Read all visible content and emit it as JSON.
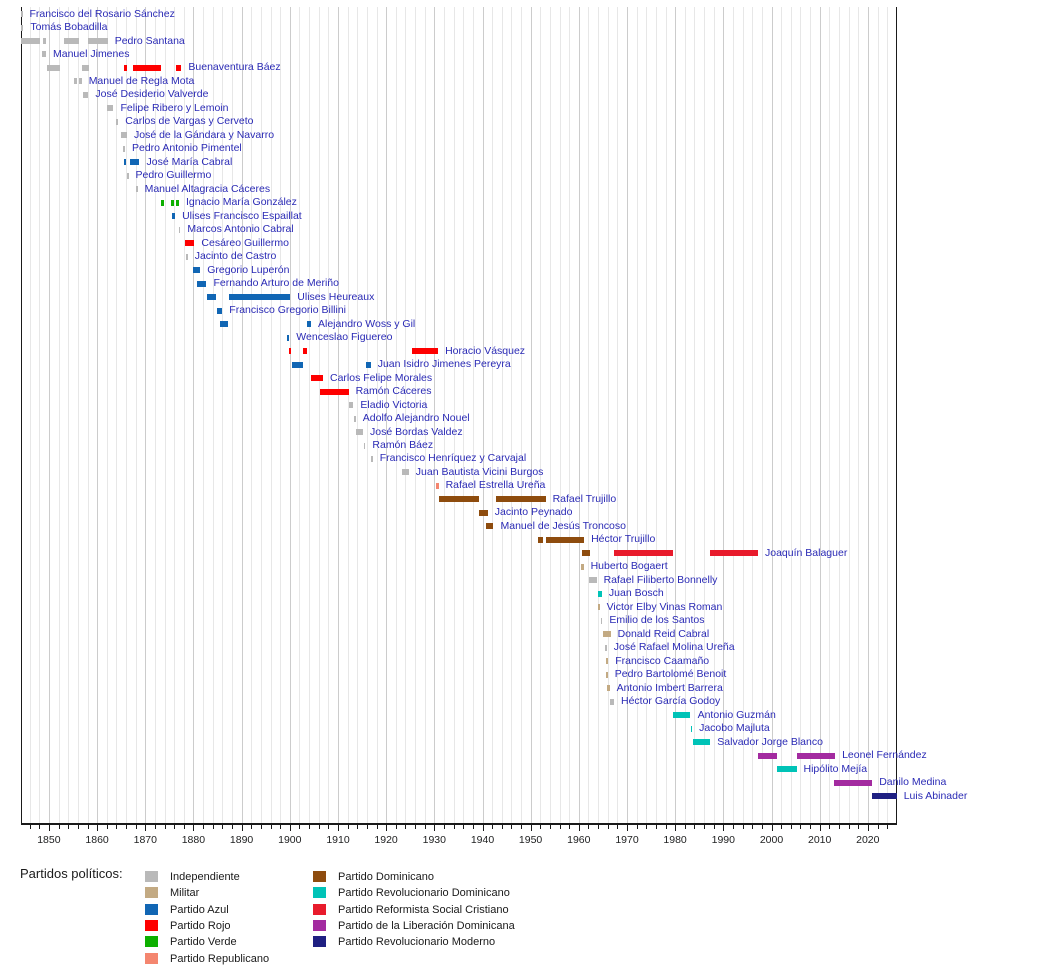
{
  "legend_title": "Partidos políticos:",
  "chart_data": {
    "type": "timeline",
    "title": "",
    "x_axis": {
      "year_min": 1844.2,
      "year_max": 2025.85,
      "tick_labels": [
        1850,
        1860,
        1870,
        1880,
        1890,
        1900,
        1910,
        1920,
        1930,
        1940,
        1950,
        1960,
        1970,
        1980,
        1990,
        2000,
        2010,
        2020
      ],
      "minor_step_years": 2,
      "grid": true
    },
    "parties": {
      "ind": {
        "label": "Independiente",
        "color": "#b9b9b9"
      },
      "mil": {
        "label": "Militar",
        "color": "#c3aa83"
      },
      "azul": {
        "label": "Partido Azul",
        "color": "#1166b4"
      },
      "rojo": {
        "label": "Partido Rojo",
        "color": "#fe0000"
      },
      "verde": {
        "label": "Partido Verde",
        "color": "#0daf00"
      },
      "rep": {
        "label": "Partido Republicano",
        "color": "#f4866f"
      },
      "dom": {
        "label": "Partido Dominicano",
        "color": "#8e4c0e"
      },
      "prd": {
        "label": "Partido Revolucionario Dominicano",
        "color": "#00c3b7"
      },
      "prsc": {
        "label": "Partido Reformista Social Cristiano",
        "color": "#e81b2c"
      },
      "pld": {
        "label": "Partido de la Liberación Dominicana",
        "color": "#a32ba0"
      },
      "prm": {
        "label": "Partido Revolucionario Moderno",
        "color": "#1f2082"
      }
    },
    "legend_left_order": [
      "ind",
      "mil",
      "azul",
      "rojo",
      "verde",
      "rep"
    ],
    "legend_right_order": [
      "dom",
      "prd",
      "prsc",
      "pld",
      "prm"
    ],
    "presidents": [
      {
        "name": "Francisco del Rosario Sánchez",
        "terms": [
          [
            1844.2,
            1844.5,
            "ind"
          ]
        ]
      },
      {
        "name": "Tomás Bobadilla",
        "terms": [
          [
            1844.2,
            1844.7,
            "ind"
          ]
        ]
      },
      {
        "name": "Pedro Santana",
        "terms": [
          [
            1844.2,
            1848.2,
            "ind"
          ],
          [
            1848.8,
            1849.3,
            "ind"
          ],
          [
            1853.2,
            1856.2,
            "ind"
          ],
          [
            1858.0,
            1862.2,
            "ind"
          ]
        ]
      },
      {
        "name": "Manuel Jimenes",
        "terms": [
          [
            1848.5,
            1849.4,
            "ind"
          ]
        ]
      },
      {
        "name": "Buenaventura Báez",
        "terms": [
          [
            1849.6,
            1852.3,
            "ind"
          ],
          [
            1856.9,
            1858.3,
            "ind"
          ],
          [
            1865.6,
            1866.3,
            "rojo"
          ],
          [
            1867.5,
            1873.2,
            "rojo"
          ],
          [
            1876.3,
            1877.5,
            "rojo"
          ]
        ]
      },
      {
        "name": "Manuel de Regla Mota",
        "terms": [
          [
            1855.1,
            1855.8,
            "ind"
          ],
          [
            1856.3,
            1856.8,
            "ind"
          ]
        ]
      },
      {
        "name": "José Desiderio Valverde",
        "terms": [
          [
            1857.0,
            1858.2,
            "ind"
          ]
        ]
      },
      {
        "name": "Felipe Ribero y Lemoin",
        "terms": [
          [
            1862.1,
            1863.4,
            "ind"
          ]
        ]
      },
      {
        "name": "Carlos de Vargas y Cerveto",
        "terms": [
          [
            1863.9,
            1864.4,
            "ind"
          ]
        ]
      },
      {
        "name": "José de la Gándara y Navarro",
        "terms": [
          [
            1864.9,
            1866.2,
            "ind"
          ]
        ]
      },
      {
        "name": "Pedro Antonio Pimentel",
        "terms": [
          [
            1865.3,
            1865.8,
            "ind"
          ]
        ]
      },
      {
        "name": "José María Cabral",
        "terms": [
          [
            1865.6,
            1866.0,
            "azul"
          ],
          [
            1866.9,
            1868.8,
            "azul"
          ]
        ]
      },
      {
        "name": "Pedro Guillermo",
        "terms": [
          [
            1866.2,
            1866.5,
            "ind"
          ]
        ]
      },
      {
        "name": "Manuel Altagracia Cáceres",
        "terms": [
          [
            1868.1,
            1868.4,
            "ind"
          ]
        ]
      },
      {
        "name": "Ignacio María González",
        "terms": [
          [
            1873.2,
            1873.9,
            "verde"
          ],
          [
            1875.3,
            1875.9,
            "verde"
          ],
          [
            1876.3,
            1877.0,
            "verde"
          ]
        ]
      },
      {
        "name": "Ulises Francisco Espaillat",
        "terms": [
          [
            1875.6,
            1876.2,
            "azul"
          ]
        ]
      },
      {
        "name": "Marcos Antonio Cabral",
        "terms": [
          [
            1876.9,
            1877.3,
            "ind"
          ]
        ]
      },
      {
        "name": "Cesáreo Guillermo",
        "terms": [
          [
            1878.2,
            1880.2,
            "rojo"
          ]
        ]
      },
      {
        "name": "Jacinto de Castro",
        "terms": [
          [
            1878.5,
            1878.8,
            "ind"
          ]
        ]
      },
      {
        "name": "Gregorio Luperón",
        "terms": [
          [
            1879.9,
            1881.4,
            "azul"
          ]
        ]
      },
      {
        "name": "Fernando Arturo de Meriño",
        "terms": [
          [
            1880.7,
            1882.7,
            "azul"
          ]
        ]
      },
      {
        "name": "Ulises Heureaux",
        "terms": [
          [
            1882.9,
            1884.6,
            "azul"
          ],
          [
            1887.3,
            1900.1,
            "azul"
          ]
        ]
      },
      {
        "name": "Francisco Gregorio Billini",
        "terms": [
          [
            1884.9,
            1886.0,
            "azul"
          ]
        ]
      },
      {
        "name": "Alejandro Woss y Gil",
        "terms": [
          [
            1885.6,
            1887.1,
            "azul"
          ],
          [
            1903.5,
            1904.4,
            "azul"
          ]
        ]
      },
      {
        "name": "Wenceslao Figuereo",
        "terms": [
          [
            1899.5,
            1899.9,
            "azul"
          ]
        ]
      },
      {
        "name": "Horacio Vásquez",
        "terms": [
          [
            1899.9,
            1900.3,
            "rojo"
          ],
          [
            1902.8,
            1903.6,
            "rojo"
          ],
          [
            1925.4,
            1930.8,
            "rojo"
          ]
        ]
      },
      {
        "name": "Juan Isidro Jimenes Pereyra",
        "terms": [
          [
            1900.4,
            1902.7,
            "azul"
          ],
          [
            1915.9,
            1916.8,
            "azul"
          ]
        ]
      },
      {
        "name": "Carlos Felipe Morales",
        "terms": [
          [
            1904.4,
            1906.9,
            "rojo"
          ]
        ]
      },
      {
        "name": "Ramón Cáceres",
        "terms": [
          [
            1906.2,
            1912.2,
            "rojo"
          ]
        ]
      },
      {
        "name": "Eladio Victoria",
        "terms": [
          [
            1912.3,
            1913.2,
            "ind"
          ]
        ]
      },
      {
        "name": "Adolfo Alejandro Nouel",
        "terms": [
          [
            1913.3,
            1913.7,
            "ind"
          ]
        ]
      },
      {
        "name": "José Bordas Valdez",
        "terms": [
          [
            1913.8,
            1915.2,
            "ind"
          ]
        ]
      },
      {
        "name": "Ramón Báez",
        "terms": [
          [
            1915.3,
            1915.7,
            "ind"
          ]
        ]
      },
      {
        "name": "Francisco Henríquez y Carvajal",
        "terms": [
          [
            1916.9,
            1917.2,
            "ind"
          ]
        ]
      },
      {
        "name": "Juan Bautista Vicini Burgos",
        "terms": [
          [
            1923.2,
            1924.7,
            "ind"
          ]
        ]
      },
      {
        "name": "Rafael Estrella Ureña",
        "terms": [
          [
            1930.4,
            1930.9,
            "rep"
          ]
        ]
      },
      {
        "name": "Rafael Trujillo",
        "terms": [
          [
            1930.9,
            1939.2,
            "dom"
          ],
          [
            1942.7,
            1953.1,
            "dom"
          ]
        ]
      },
      {
        "name": "Jacinto Peynado",
        "terms": [
          [
            1939.3,
            1941.1,
            "dom"
          ]
        ]
      },
      {
        "name": "Manuel de Jesús Troncoso",
        "terms": [
          [
            1940.7,
            1942.3,
            "dom"
          ]
        ]
      },
      {
        "name": "Héctor Trujillo",
        "terms": [
          [
            1951.5,
            1952.6,
            "dom"
          ],
          [
            1953.2,
            1961.1,
            "dom"
          ]
        ]
      },
      {
        "name": "Joaquín Balaguer",
        "terms": [
          [
            1960.6,
            1962.3,
            "dom"
          ],
          [
            1967.4,
            1979.6,
            "prsc"
          ],
          [
            1987.3,
            1997.2,
            "prsc"
          ]
        ]
      },
      {
        "name": "Huberto Bogaert",
        "terms": [
          [
            1960.5,
            1961.0,
            "mil"
          ]
        ]
      },
      {
        "name": "Rafael Filiberto Bonnelly",
        "terms": [
          [
            1962.1,
            1963.7,
            "ind"
          ]
        ]
      },
      {
        "name": "Juan Bosch",
        "terms": [
          [
            1963.9,
            1964.8,
            "prd"
          ]
        ]
      },
      {
        "name": "Victor Elby Vinas Roman",
        "terms": [
          [
            1964.0,
            1964.3,
            "mil"
          ]
        ]
      },
      {
        "name": "Emilio de los Santos",
        "terms": [
          [
            1964.5,
            1964.9,
            "ind"
          ]
        ]
      },
      {
        "name": "Donald Reid Cabral",
        "terms": [
          [
            1965.0,
            1966.6,
            "mil"
          ]
        ]
      },
      {
        "name": "José Rafael Molina Ureña",
        "terms": [
          [
            1965.5,
            1965.8,
            "ind"
          ]
        ]
      },
      {
        "name": "Francisco Caamaño",
        "terms": [
          [
            1965.6,
            1966.1,
            "mil"
          ]
        ]
      },
      {
        "name": "Pedro Bartolomé Benoit",
        "terms": [
          [
            1965.7,
            1966.0,
            "mil"
          ]
        ]
      },
      {
        "name": "Antonio Imbert Barrera",
        "terms": [
          [
            1965.9,
            1966.4,
            "mil"
          ]
        ]
      },
      {
        "name": "Héctor García Godoy",
        "terms": [
          [
            1966.5,
            1967.3,
            "ind"
          ]
        ]
      },
      {
        "name": "Antonio Guzmán",
        "terms": [
          [
            1979.5,
            1983.2,
            "prd"
          ]
        ]
      },
      {
        "name": "Jacobo Majluta",
        "terms": [
          [
            1983.2,
            1983.5,
            "prd"
          ]
        ]
      },
      {
        "name": "Salvador Jorge Blanco",
        "terms": [
          [
            1983.6,
            1987.3,
            "prd"
          ]
        ]
      },
      {
        "name": "Leonel Fernández",
        "terms": [
          [
            1997.2,
            2001.2,
            "pld"
          ],
          [
            2005.2,
            2013.2,
            "pld"
          ]
        ]
      },
      {
        "name": "Hipólito Mejía",
        "terms": [
          [
            2001.2,
            2005.2,
            "prd"
          ]
        ]
      },
      {
        "name": "Danilo Medina",
        "terms": [
          [
            2012.9,
            2020.9,
            "pld"
          ]
        ]
      },
      {
        "name": "Luis Abinader",
        "terms": [
          [
            2020.9,
            2026.0,
            "prm"
          ]
        ]
      }
    ]
  }
}
